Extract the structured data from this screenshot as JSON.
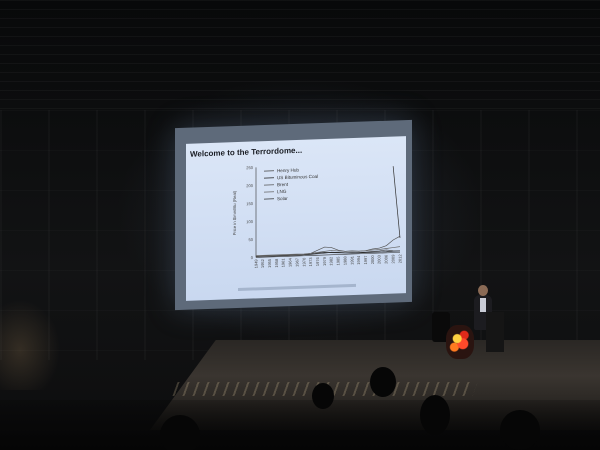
{
  "slide": {
    "title": "Welcome to the Terrordome...",
    "source_note": ""
  },
  "chart_data": {
    "type": "line",
    "ylabel": "Price in $/mmBtu (Real)",
    "xlabel": "",
    "ylim": [
      0,
      250
    ],
    "yticks": [
      "250",
      "200",
      "150",
      "100",
      "50",
      "0"
    ],
    "x": [
      1949,
      1952,
      1955,
      1958,
      1961,
      1964,
      1967,
      1970,
      1973,
      1976,
      1979,
      1982,
      1985,
      1988,
      1991,
      1994,
      1997,
      2000,
      2003,
      2006,
      2009,
      2012
    ],
    "xticks": [
      "1949",
      "1952",
      "1955",
      "1958",
      "1961",
      "1964",
      "1967",
      "1970",
      "1973",
      "1976",
      "1979",
      "1982",
      "1985",
      "1988",
      "1991",
      "1994",
      "1997",
      "2000",
      "2003",
      "2006",
      "2009",
      "2012"
    ],
    "series": [
      {
        "name": "Henry Hub",
        "color": "#444444",
        "values": [
          2,
          2,
          2,
          2,
          2,
          2,
          2,
          3,
          3,
          4,
          5,
          7,
          6,
          4,
          4,
          3,
          4,
          5,
          6,
          8,
          5,
          4
        ]
      },
      {
        "name": "US Bituminous Coal",
        "color": "#222222",
        "values": [
          3,
          3,
          3,
          3,
          3,
          3,
          3,
          3,
          4,
          6,
          7,
          6,
          5,
          4,
          3,
          3,
          3,
          3,
          3,
          3,
          4,
          4
        ]
      },
      {
        "name": "Brent",
        "color": "#555555",
        "values": [
          3,
          3,
          3,
          3,
          3,
          3,
          3,
          3,
          6,
          14,
          22,
          20,
          12,
          8,
          9,
          7,
          8,
          12,
          14,
          20,
          35,
          45
        ]
      },
      {
        "name": "LNG",
        "color": "#666666",
        "values": [
          5,
          5,
          5,
          5,
          5,
          5,
          5,
          5,
          6,
          8,
          10,
          12,
          10,
          8,
          8,
          7,
          8,
          9,
          10,
          12,
          14,
          16
        ]
      },
      {
        "name": "Solar",
        "color": "#333333",
        "values": [
          null,
          null,
          null,
          null,
          null,
          null,
          null,
          null,
          null,
          null,
          null,
          null,
          null,
          null,
          null,
          null,
          null,
          null,
          null,
          null,
          240,
          40
        ]
      }
    ],
    "legend_position": "top-left"
  }
}
